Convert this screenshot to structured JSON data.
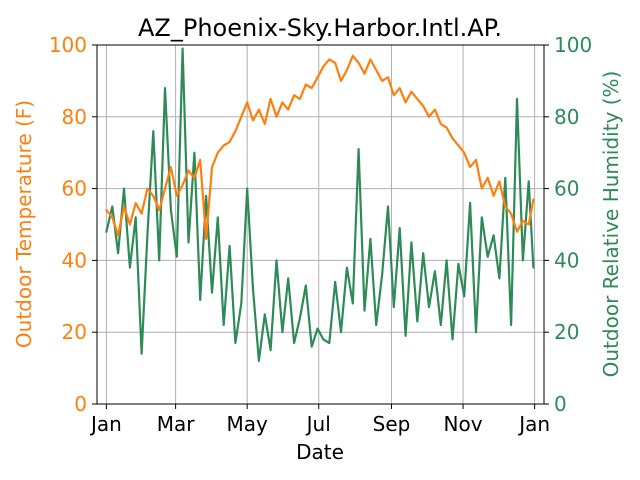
{
  "chart_data": {
    "type": "line",
    "title": "AZ_Phoenix-Sky.Harbor.Intl.AP.",
    "xlabel": "Date",
    "ylabel_left": "Outdoor Temperature (F)",
    "ylabel_right": "Outdoor Relative Humidity (%)",
    "ylim_left": [
      0,
      100
    ],
    "ylim_right": [
      0,
      100
    ],
    "xlim": [
      -8,
      373
    ],
    "grid": true,
    "x_ticks": [
      {
        "day": 0,
        "label": "Jan"
      },
      {
        "day": 59,
        "label": "Mar"
      },
      {
        "day": 120,
        "label": "May"
      },
      {
        "day": 181,
        "label": "Jul"
      },
      {
        "day": 243,
        "label": "Sep"
      },
      {
        "day": 304,
        "label": "Nov"
      },
      {
        "day": 365,
        "label": "Jan"
      }
    ],
    "y_ticks_left": [
      0,
      20,
      40,
      60,
      80,
      100
    ],
    "y_ticks_right": [
      0,
      20,
      40,
      60,
      80,
      100
    ],
    "colors": {
      "temperature": "#ff7f0e",
      "humidity": "#2e8b57",
      "grid": "#b0b0b0",
      "axis": "#000000"
    },
    "series": [
      {
        "key": "temperature",
        "axis": "left",
        "color": "#ff7f0e",
        "x": [
          0,
          5,
          10,
          15,
          20,
          25,
          30,
          35,
          40,
          45,
          50,
          55,
          60,
          65,
          70,
          75,
          80,
          85,
          90,
          95,
          100,
          105,
          110,
          115,
          120,
          125,
          130,
          135,
          140,
          145,
          150,
          155,
          160,
          165,
          170,
          175,
          180,
          185,
          190,
          195,
          200,
          205,
          210,
          215,
          220,
          225,
          230,
          235,
          240,
          245,
          250,
          255,
          260,
          265,
          270,
          275,
          280,
          285,
          290,
          295,
          300,
          305,
          310,
          315,
          320,
          325,
          330,
          335,
          340,
          345,
          350,
          355,
          360,
          364
        ],
        "y": [
          54,
          52,
          47,
          55,
          50,
          56,
          53,
          60,
          58,
          54,
          60,
          66,
          58,
          61,
          65,
          63,
          68,
          46,
          66,
          70,
          72,
          73,
          76,
          80,
          84,
          79,
          82,
          78,
          85,
          80,
          84,
          82,
          86,
          85,
          89,
          88,
          91,
          94,
          96,
          95,
          90,
          93,
          97,
          95,
          92,
          96,
          93,
          90,
          91,
          86,
          88,
          84,
          87,
          85,
          83,
          80,
          82,
          78,
          77,
          74,
          72,
          70,
          66,
          68,
          60,
          63,
          58,
          62,
          55,
          53,
          48,
          51,
          50,
          57
        ]
      },
      {
        "key": "humidity",
        "axis": "right",
        "color": "#2e8b57",
        "x": [
          0,
          5,
          10,
          15,
          20,
          25,
          30,
          35,
          40,
          45,
          50,
          55,
          60,
          65,
          70,
          75,
          80,
          85,
          90,
          95,
          100,
          105,
          110,
          115,
          120,
          125,
          130,
          135,
          140,
          145,
          150,
          155,
          160,
          165,
          170,
          175,
          180,
          185,
          190,
          195,
          200,
          205,
          210,
          215,
          220,
          225,
          230,
          235,
          240,
          245,
          250,
          255,
          260,
          265,
          270,
          275,
          280,
          285,
          290,
          295,
          300,
          305,
          310,
          315,
          320,
          325,
          330,
          335,
          340,
          345,
          350,
          355,
          360,
          364
        ],
        "y": [
          48,
          55,
          42,
          60,
          38,
          52,
          14,
          47,
          76,
          40,
          88,
          54,
          41,
          99,
          45,
          70,
          29,
          58,
          31,
          52,
          22,
          44,
          17,
          28,
          60,
          32,
          12,
          25,
          15,
          40,
          20,
          35,
          17,
          24,
          33,
          16,
          21,
          18,
          17,
          34,
          20,
          38,
          28,
          71,
          26,
          46,
          22,
          36,
          55,
          27,
          49,
          19,
          45,
          23,
          42,
          27,
          37,
          22,
          40,
          18,
          39,
          30,
          56,
          20,
          52,
          41,
          47,
          35,
          63,
          22,
          85,
          40,
          62,
          38
        ]
      }
    ]
  }
}
